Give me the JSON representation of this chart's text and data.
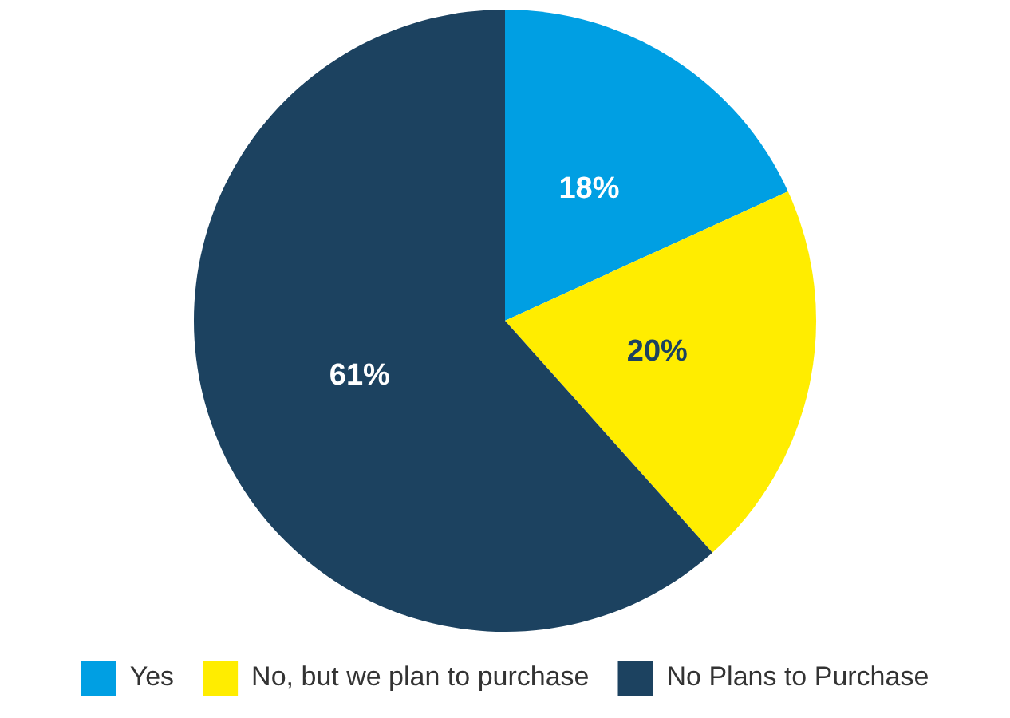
{
  "chart_data": {
    "type": "pie",
    "categories": [
      "Yes",
      "No, but we plan to purchase",
      "No Plans to Purchase"
    ],
    "values": [
      18,
      20,
      61
    ],
    "colors": [
      "#009fe3",
      "#ffed00",
      "#1c4260"
    ],
    "value_labels": [
      "18%",
      "20%",
      "61%"
    ],
    "legend": "bottom"
  }
}
